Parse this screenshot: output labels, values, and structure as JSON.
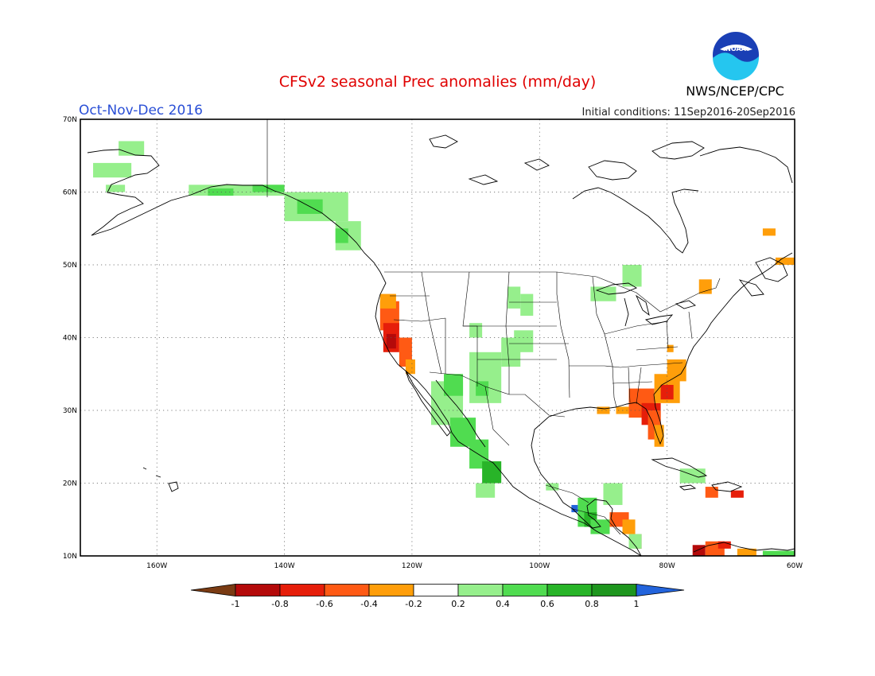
{
  "header": {
    "title": "CFSv2 seasonal Prec anomalies (mm/day)",
    "period": "Oct-Nov-Dec 2016",
    "initial_conditions": "Initial conditions: 11Sep2016-20Sep2016",
    "agency": "NWS/NCEP/CPC",
    "logo_text": "NOAA"
  },
  "map": {
    "lon_range": [
      -172,
      -60
    ],
    "lat_range": [
      10,
      70
    ],
    "lat_labels": [
      "70N",
      "60N",
      "50N",
      "40N",
      "30N",
      "20N",
      "10N"
    ],
    "lon_labels": [
      "160W",
      "140W",
      "120W",
      "100W",
      "80W",
      "60W"
    ],
    "grid": "dotted"
  },
  "colorbar": {
    "labels": [
      "-1",
      "-0.8",
      "-0.6",
      "-0.4",
      "-0.2",
      "0.2",
      "0.4",
      "0.6",
      "0.8",
      "1"
    ],
    "colors": [
      "#7a3b13",
      "#b40a0a",
      "#e61e0a",
      "#ff5a14",
      "#ff9e0a",
      "#ffffff",
      "#96ef8c",
      "#50dc50",
      "#28b428",
      "#1e961e",
      "#2364dc"
    ]
  },
  "colors": {
    "title": "#e00000",
    "period": "#2a4fd6",
    "noaa_blue": "#1a3fb5",
    "noaa_cyan": "#25c6ef"
  }
}
